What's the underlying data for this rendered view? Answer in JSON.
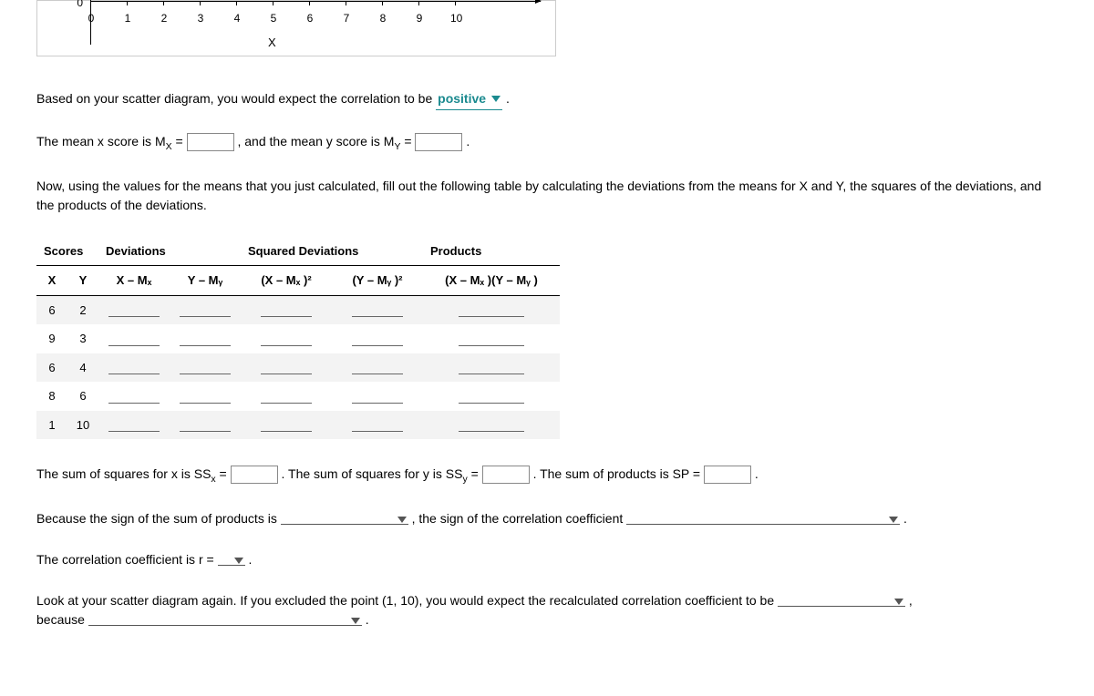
{
  "chart": {
    "y_tick_label": "0",
    "x_ticks": [
      "0",
      "1",
      "2",
      "3",
      "4",
      "5",
      "6",
      "7",
      "8",
      "9",
      "10"
    ],
    "x_axis_label": "X",
    "xlim": [
      0,
      10
    ],
    "tick_color": "#000000",
    "background_color": "#ffffff",
    "border_color": "#cccccc"
  },
  "q_correlation": {
    "prefix": "Based on your scatter diagram, you would expect the correlation to be",
    "selected": "positive",
    "suffix": "."
  },
  "q_means": {
    "part1": "The mean x score is M",
    "sub1": "X",
    "eq1": " = ",
    "mid": ", and the mean y score is M",
    "sub2": "Y",
    "eq2": " = ",
    "suffix": "."
  },
  "instructions": "Now, using the values for the means that you just calculated, fill out the following table by calculating the deviations from the means for X and Y, the squares of the deviations, and the products of the deviations.",
  "table": {
    "group_headers": [
      "Scores",
      "Deviations",
      "Squared Deviations",
      "Products"
    ],
    "sub_headers": {
      "x": "X",
      "y": "Y",
      "xmx": "X – Mₓ",
      "ymy": "Y – Mᵧ",
      "xmx2": "(X – Mₓ )²",
      "ymy2": "(Y – Mᵧ )²",
      "prod": "(X – Mₓ )(Y – Mᵧ )"
    },
    "rows": [
      {
        "x": "6",
        "y": "2"
      },
      {
        "x": "9",
        "y": "3"
      },
      {
        "x": "6",
        "y": "4"
      },
      {
        "x": "8",
        "y": "6"
      },
      {
        "x": "1",
        "y": "10"
      }
    ]
  },
  "q_sums": {
    "ssx": "The sum of squares for x is SS",
    "ssx_sub": "x",
    "ssy": ". The sum of squares for y is SS",
    "ssy_sub": "y",
    "sp": ". The sum of products is SP = ",
    "eq": " = ",
    "suffix": "."
  },
  "q_sign": {
    "prefix": "Because the sign of the sum of products is",
    "mid": ", the sign of the correlation coefficient",
    "suffix": "."
  },
  "q_r": {
    "prefix": "The correlation coefficient is r = ",
    "suffix": "."
  },
  "q_exclude": {
    "prefix": "Look at your scatter diagram again. If you excluded the point (1, 10), you would expect the recalculated correlation coefficient to be",
    "comma": ",",
    "because": "because",
    "suffix": "."
  }
}
